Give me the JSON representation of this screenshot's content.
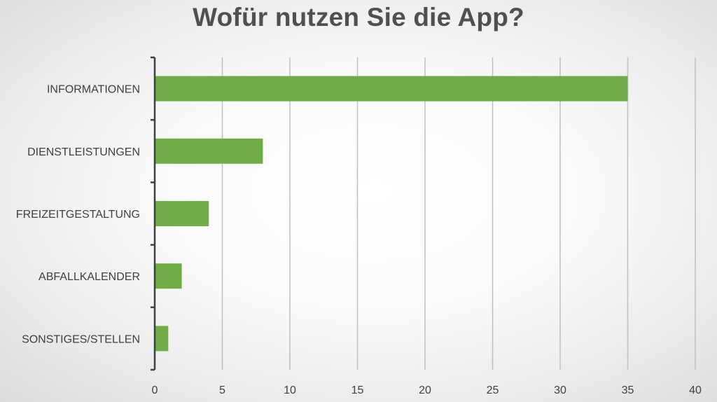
{
  "chart_data": {
    "type": "bar",
    "orientation": "horizontal",
    "title": "Wofür nutzen Sie die App?",
    "xlabel": "",
    "ylabel": "",
    "categories": [
      "INFORMATIONEN",
      "DIENSTLEISTUNGEN",
      "FREIZEITGESTALTUNG",
      "ABFALLKALENDER",
      "SONSTIGES/STELLEN"
    ],
    "values": [
      35,
      8,
      4,
      2,
      1
    ],
    "xlim": [
      0,
      40
    ],
    "xticks": [
      "0",
      "5",
      "10",
      "15",
      "20",
      "25",
      "30",
      "35",
      "40"
    ],
    "grid": "vertical",
    "legend": "none",
    "bar_color": "#70ad47",
    "grid_color": "#c0c0c0",
    "axis_color": "#404040",
    "text_color": "#404040",
    "title_color": "#505050"
  }
}
